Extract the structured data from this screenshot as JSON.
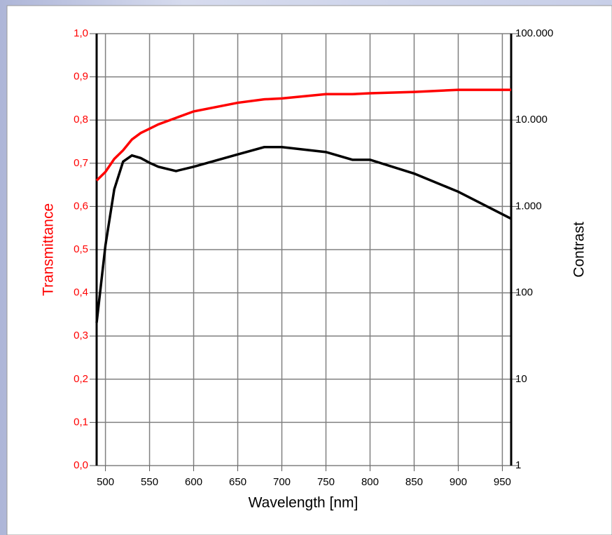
{
  "chart_data": {
    "type": "line",
    "xlabel": "Wavelength [nm]",
    "ylabel": "Transmittance",
    "y2label": "Contrast",
    "x": [
      490,
      500,
      510,
      520,
      530,
      540,
      550,
      560,
      580,
      600,
      650,
      680,
      700,
      750,
      780,
      800,
      850,
      900,
      960
    ],
    "series": [
      {
        "color": "#ff0000",
        "values": [
          0.66,
          0.68,
          0.71,
          0.73,
          0.755,
          0.77,
          0.78,
          0.79,
          0.805,
          0.82,
          0.84,
          0.848,
          0.85,
          0.86,
          0.86,
          0.862,
          0.865,
          0.87,
          0.87
        ]
      },
      {
        "color": "#000000",
        "axis": "y2",
        "values": [
          45,
          355,
          1580,
          3300,
          3890,
          3630,
          3200,
          2880,
          2570,
          2880,
          4000,
          4860,
          4860,
          4260,
          3470,
          3470,
          2400,
          1480,
          720
        ]
      }
    ],
    "xlim": [
      490,
      960
    ],
    "xticks": [
      500,
      550,
      600,
      650,
      700,
      750,
      800,
      850,
      900,
      950
    ],
    "ylim": [
      0,
      1
    ],
    "yticks": [
      {
        "value": 0,
        "label": "0,0"
      },
      {
        "value": 0.1,
        "label": "0,1"
      },
      {
        "value": 0.2,
        "label": "0,2"
      },
      {
        "value": 0.3,
        "label": "0,3"
      },
      {
        "value": 0.4,
        "label": "0,4"
      },
      {
        "value": 0.5,
        "label": "0,5"
      },
      {
        "value": 0.6,
        "label": "0,6"
      },
      {
        "value": 0.7,
        "label": "0,7"
      },
      {
        "value": 0.8,
        "label": "0,8"
      },
      {
        "value": 0.9,
        "label": "0,9"
      },
      {
        "value": 1,
        "label": "1,0"
      }
    ],
    "y2lim": [
      1,
      100000
    ],
    "y2log": true,
    "y2ticks": [
      1,
      10,
      100,
      {
        "value": 1000,
        "label": "1.000"
      },
      {
        "value": 10000,
        "label": "10.000"
      },
      {
        "value": 100000,
        "label": "100.000"
      }
    ],
    "grid": true
  }
}
